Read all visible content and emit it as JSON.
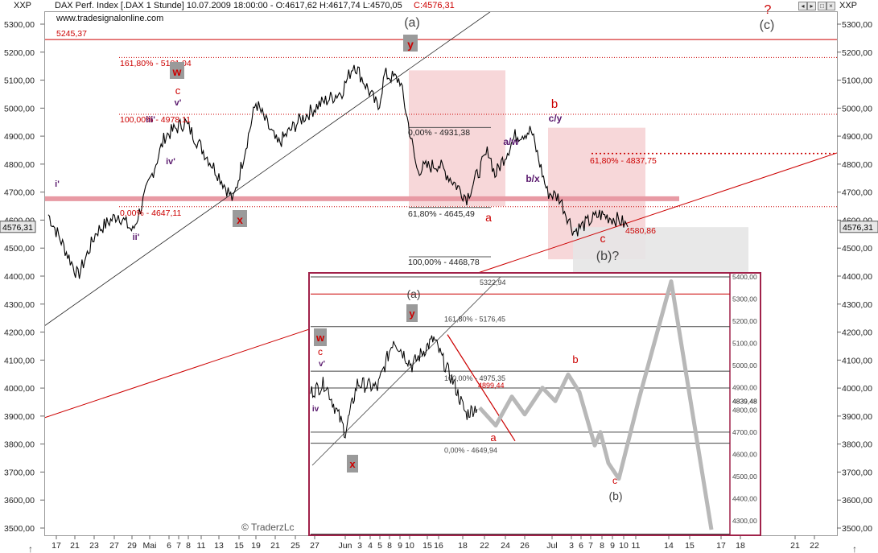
{
  "header": {
    "symbol_left": "XXP",
    "symbol_right": "XXP",
    "instrument_line": "DAX Perf. Index [.DAX 1 Stunde] 10.07.2009 18:00:00 - O:4617,62 H:4617,74 L:4570,05",
    "close_text": "C:4576,31",
    "website": "www.tradesignalonline.com"
  },
  "colors": {
    "price": "#000000",
    "fib_line": "#cc0000",
    "support_band": "#e89aa4",
    "target_box": "#f7d7d9",
    "gray_box": "#dcdcdc",
    "wave_red": "#cc0000",
    "wave_purple": "#5a1a6e",
    "inset_border": "#a0224a"
  },
  "chart_data": {
    "type": "line",
    "title": "DAX Perf. Index [.DAX 1 Stunde]",
    "ylim": [
      3470,
      5350
    ],
    "y_ticks": [
      "5300,00",
      "5200,00",
      "5100,00",
      "5000,00",
      "4900,00",
      "4800,00",
      "4700,00",
      "4600,00",
      "4500,00",
      "4400,00",
      "4300,00",
      "4200,00",
      "4100,00",
      "4000,00",
      "3900,00",
      "3800,00",
      "3700,00",
      "3600,00",
      "3500,00"
    ],
    "y_tick_values": [
      5300,
      5200,
      5100,
      5000,
      4900,
      4800,
      4700,
      4600,
      4500,
      4400,
      4300,
      4200,
      4100,
      4000,
      3900,
      3800,
      3700,
      3600,
      3500
    ],
    "x_ticks": [
      "17",
      "21",
      "23",
      "27",
      "29",
      "Mai",
      "6",
      "7",
      "8",
      "11",
      "13",
      "15",
      "19",
      "21",
      "25",
      "27",
      "Jun",
      "3",
      "4",
      "5",
      "8",
      "9",
      "10",
      "15",
      "16",
      "18",
      "22",
      "24",
      "26",
      "Jul",
      "3",
      "6",
      "7",
      "8",
      "9",
      "10",
      "11",
      "14",
      "15",
      "17",
      "18",
      "21",
      "22"
    ],
    "last_price_label": "4576,31",
    "series": [
      {
        "x": [
          "17 Apr",
          "21 Apr",
          "23 Apr",
          "27 Apr",
          "29 Apr",
          "6 Mai",
          "8 Mai",
          "13 Mai",
          "15 Mai",
          "19 Mai",
          "21 Mai",
          "25 Mai",
          "27 Mai",
          "Jun",
          "5 Jun",
          "9 Jun",
          "10 Jun",
          "12 Jun",
          "15 Jun",
          "16 Jun",
          "18 Jun",
          "23 Jun",
          "24 Jun",
          "26 Jun",
          "29 Jun",
          "1 Jul",
          "3 Jul",
          "6 Jul",
          "7 Jul",
          "8 Jul",
          "9 Jul",
          "10 Jul"
        ],
        "values": [
          4620,
          4400,
          4560,
          4620,
          4560,
          4900,
          4950,
          4760,
          4670,
          5020,
          4870,
          4950,
          5010,
          5060,
          5160,
          5000,
          5120,
          5100,
          4920,
          4780,
          4800,
          4680,
          4850,
          4760,
          4900,
          4920,
          4700,
          4680,
          4560,
          4620,
          4600,
          4576
        ]
      }
    ],
    "fib_levels": [
      {
        "label": "5245,37",
        "value": 5245
      },
      {
        "label": "161,80% - 5181,04",
        "value": 5181
      },
      {
        "label": "100,00% - 4978,11",
        "value": 4978
      },
      {
        "label": "0,00% - 4647,11",
        "value": 4647
      },
      {
        "label": "0,00% - 4931,38",
        "value": 4931
      },
      {
        "label": "61,80% - 4645,49",
        "value": 4645
      },
      {
        "label": "100,00% - 4468,78",
        "value": 4469
      },
      {
        "label": "61,80% - 4837,75",
        "value": 4838
      },
      {
        "label": "4580,86",
        "value": 4581
      }
    ],
    "wave_labels": [
      "(a)",
      "y",
      "w",
      "c",
      "v'",
      "iii'",
      "iv'",
      "i'",
      "ii'",
      "x",
      "a",
      "a/w",
      "b/x",
      "b",
      "c/y",
      "c",
      "(b)?",
      "?",
      "(c)"
    ],
    "inset": {
      "levels": [
        {
          "label": "5322,94",
          "value": 5323
        },
        {
          "label": "161,80% - 5176,45",
          "value": 5176
        },
        {
          "label": "100,00% - 4975,35",
          "value": 4975
        },
        {
          "label": "4899,44",
          "value": 4899
        },
        {
          "label": "0,00% - 4649,94",
          "value": 4650
        }
      ],
      "y_ticks": [
        "5400,00",
        "5300,00",
        "5200,00",
        "5100,00",
        "5000,00",
        "4900,00",
        "4839,48",
        "4800,00",
        "4700,00",
        "4600,00",
        "4500,00",
        "4400,00",
        "4300,00"
      ],
      "wave_labels": [
        "(a)",
        "y",
        "w",
        "c",
        "v'",
        "iv",
        "x",
        "a",
        "b",
        "c",
        "(b)"
      ],
      "watermark": "© TraderzLc"
    }
  }
}
